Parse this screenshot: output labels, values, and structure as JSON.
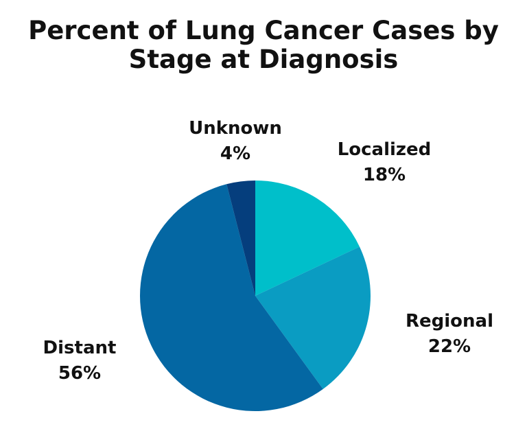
{
  "chart_data": {
    "type": "pie",
    "title": "Percent of Lung Cancer Cases by Stage at Diagnosis",
    "title_lines": [
      "Percent of Lung Cancer Cases by",
      "Stage at Diagnosis"
    ],
    "start_angle_deg": 0,
    "direction": "clockwise",
    "legend": "none",
    "unit": "%",
    "slices": [
      {
        "label": "Localized",
        "value": 18,
        "value_label": "18%",
        "color": "#00bfca"
      },
      {
        "label": "Regional",
        "value": 22,
        "value_label": "22%",
        "color": "#0a9cc2"
      },
      {
        "label": "Distant",
        "value": 56,
        "value_label": "56%",
        "color": "#0467a3"
      },
      {
        "label": "Unknown",
        "value": 4,
        "value_label": "4%",
        "color": "#053e7d"
      }
    ]
  }
}
